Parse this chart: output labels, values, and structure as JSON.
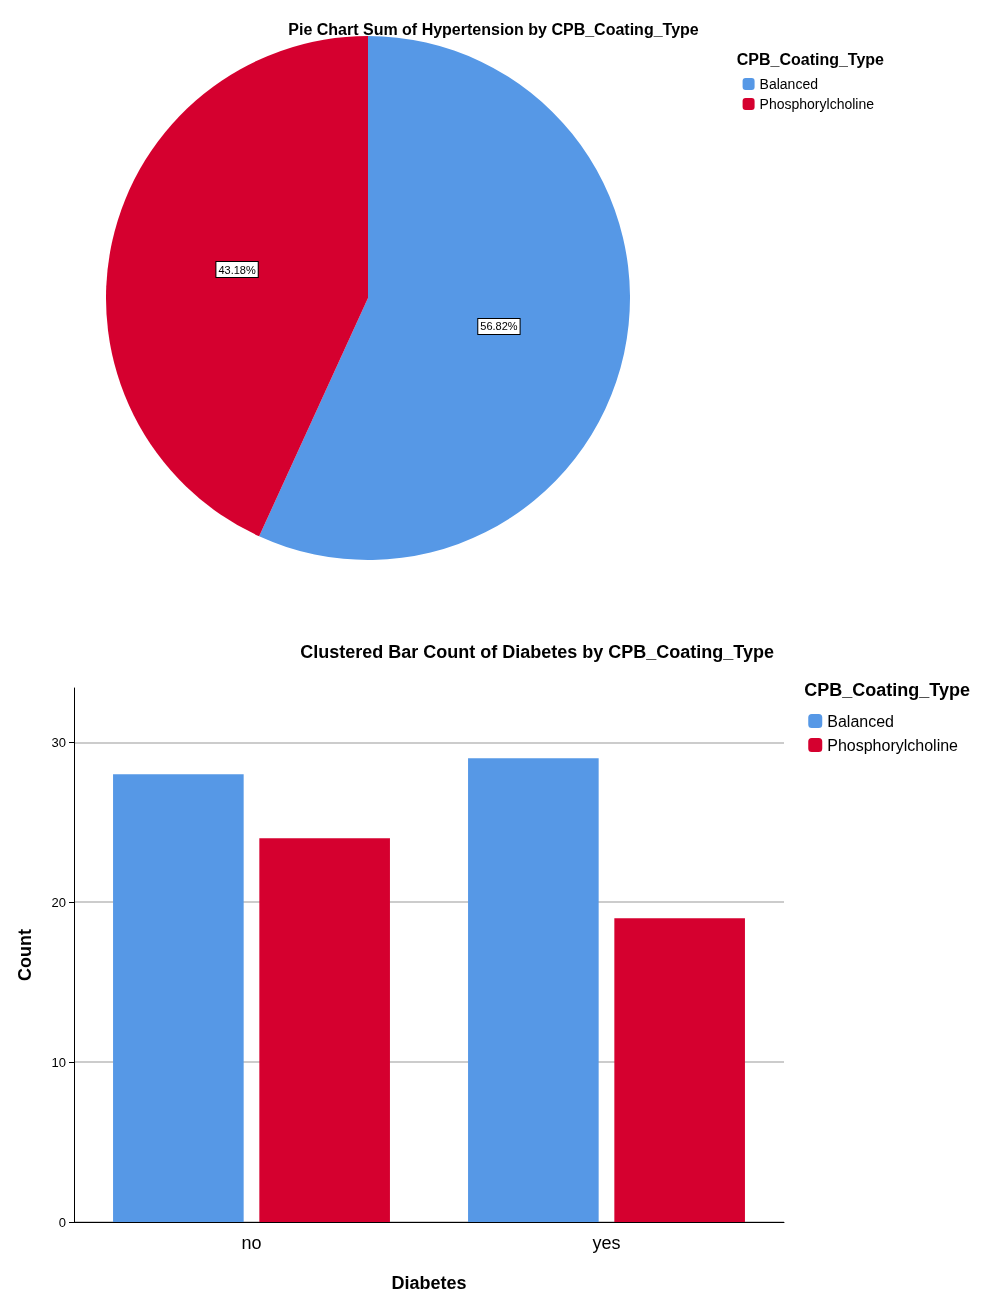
{
  "chart_data": [
    {
      "type": "pie",
      "title": "Pie Chart Sum of Hypertension by CPB_Coating_Type",
      "legend_title": "CPB_Coating_Type",
      "legend": "top right",
      "categories": [
        "Balanced",
        "Phosphorylcholine"
      ],
      "values": [
        56.82,
        43.18
      ],
      "colors": [
        "#5698e6",
        "#d5002f"
      ],
      "value_labels": [
        "56.82%",
        "43.18%"
      ]
    },
    {
      "type": "bar",
      "title": "Clustered Bar Count of Diabetes by CPB_Coating_Type",
      "legend_title": "CPB_Coating_Type",
      "legend": "top right",
      "xlabel": "Diabetes",
      "ylabel": "Count",
      "categories": [
        "no",
        "yes"
      ],
      "ylim": [
        0,
        33.4
      ],
      "yticks": [
        0,
        10,
        20,
        30
      ],
      "grid": "y",
      "series": [
        {
          "name": "Balanced",
          "color": "#5698e6",
          "values": [
            28,
            29
          ]
        },
        {
          "name": "Phosphorylcholine",
          "color": "#d5002f",
          "values": [
            24,
            19
          ]
        }
      ]
    }
  ]
}
